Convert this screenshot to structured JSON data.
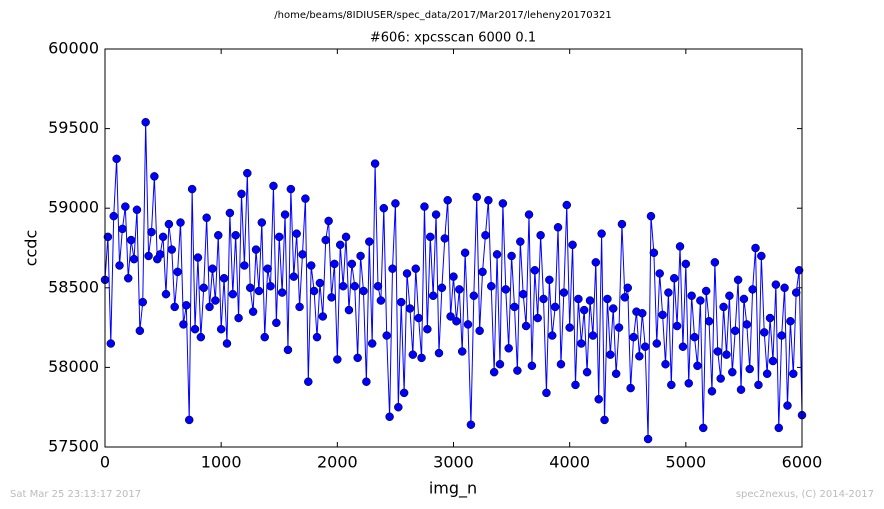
{
  "chart_data": {
    "type": "line",
    "suptitle": "/home/beams/8IDIUSER/spec_data/2017/Mar2017/leheny20170321",
    "title": "#606: xpcsscan 6000 0.1",
    "x_label": "img_n",
    "y_label": "ccdc",
    "footer_left": "Sat Mar 25 23:13:17 2017",
    "footer_right": "spec2nexus, (C) 2014-2017",
    "xlim": [
      0,
      6000
    ],
    "xticks": [
      0,
      1000,
      2000,
      3000,
      4000,
      5000,
      6000
    ],
    "ylim": [
      57500,
      60000
    ],
    "yticks": [
      57500,
      58000,
      58500,
      59000,
      59500,
      60000
    ],
    "grid": false,
    "marker": "circle",
    "x": [
      0,
      25,
      50,
      75,
      100,
      125,
      150,
      175,
      200,
      225,
      250,
      275,
      300,
      325,
      350,
      375,
      400,
      425,
      450,
      475,
      500,
      525,
      550,
      575,
      600,
      625,
      650,
      675,
      700,
      725,
      750,
      775,
      800,
      825,
      850,
      875,
      900,
      925,
      950,
      975,
      1000,
      1025,
      1050,
      1075,
      1100,
      1125,
      1150,
      1175,
      1200,
      1225,
      1250,
      1275,
      1300,
      1325,
      1350,
      1375,
      1400,
      1425,
      1450,
      1475,
      1500,
      1525,
      1550,
      1575,
      1600,
      1625,
      1650,
      1675,
      1700,
      1725,
      1750,
      1775,
      1800,
      1825,
      1850,
      1875,
      1900,
      1925,
      1950,
      1975,
      2000,
      2025,
      2050,
      2075,
      2100,
      2125,
      2150,
      2175,
      2200,
      2225,
      2250,
      2275,
      2300,
      2325,
      2350,
      2375,
      2400,
      2425,
      2450,
      2475,
      2500,
      2525,
      2550,
      2575,
      2600,
      2625,
      2650,
      2675,
      2700,
      2725,
      2750,
      2775,
      2800,
      2825,
      2850,
      2875,
      2900,
      2925,
      2950,
      2975,
      3000,
      3025,
      3050,
      3075,
      3100,
      3125,
      3150,
      3175,
      3200,
      3225,
      3250,
      3275,
      3300,
      3325,
      3350,
      3375,
      3400,
      3425,
      3450,
      3475,
      3500,
      3525,
      3550,
      3575,
      3600,
      3625,
      3650,
      3675,
      3700,
      3725,
      3750,
      3775,
      3800,
      3825,
      3850,
      3875,
      3900,
      3925,
      3950,
      3975,
      4000,
      4025,
      4050,
      4075,
      4100,
      4125,
      4150,
      4175,
      4200,
      4225,
      4250,
      4275,
      4300,
      4325,
      4350,
      4375,
      4400,
      4425,
      4450,
      4475,
      4500,
      4525,
      4550,
      4575,
      4600,
      4625,
      4650,
      4675,
      4700,
      4725,
      4750,
      4775,
      4800,
      4825,
      4850,
      4875,
      4900,
      4925,
      4950,
      4975,
      5000,
      5025,
      5050,
      5075,
      5100,
      5125,
      5150,
      5175,
      5200,
      5225,
      5250,
      5275,
      5300,
      5325,
      5350,
      5375,
      5400,
      5425,
      5450,
      5475,
      5500,
      5525,
      5550,
      5575,
      5600,
      5625,
      5650,
      5675,
      5700,
      5725,
      5750,
      5775,
      5800,
      5825,
      5850,
      5875,
      5900,
      5925,
      5950,
      5975,
      6000
    ],
    "series": [
      {
        "name": "ccdc",
        "color": "#0000ff",
        "values": [
          58550,
          58820,
          58150,
          58950,
          59310,
          58640,
          58870,
          59010,
          58560,
          58800,
          58680,
          58990,
          58230,
          58410,
          59540,
          58700,
          58850,
          59200,
          58680,
          58710,
          58820,
          58460,
          58900,
          58740,
          58380,
          58600,
          58910,
          58270,
          58390,
          57670,
          59120,
          58240,
          58690,
          58190,
          58500,
          58940,
          58380,
          58620,
          58420,
          58830,
          58240,
          58560,
          58150,
          58970,
          58460,
          58830,
          58310,
          59090,
          58640,
          59220,
          58500,
          58350,
          58740,
          58480,
          58910,
          58190,
          58620,
          58510,
          59140,
          58280,
          58820,
          58470,
          58960,
          58110,
          59120,
          58570,
          58840,
          58380,
          58710,
          59060,
          57910,
          58640,
          58480,
          58190,
          58530,
          58320,
          58800,
          58920,
          58440,
          58650,
          58050,
          58770,
          58510,
          58820,
          58360,
          58650,
          58510,
          58060,
          58700,
          58480,
          57910,
          58790,
          58150,
          59280,
          58510,
          58420,
          59000,
          58200,
          57690,
          58620,
          59030,
          57750,
          58410,
          57840,
          58590,
          58370,
          58080,
          58620,
          58310,
          58060,
          59010,
          58240,
          58820,
          58450,
          58960,
          58090,
          58500,
          58810,
          59050,
          58320,
          58570,
          58290,
          58490,
          58100,
          58720,
          58270,
          57640,
          58450,
          59070,
          58230,
          58600,
          58830,
          59050,
          58510,
          57970,
          58710,
          58020,
          59030,
          58490,
          58120,
          58700,
          58380,
          57980,
          58790,
          58460,
          58260,
          58960,
          58010,
          58610,
          58310,
          58830,
          58430,
          57840,
          58550,
          58200,
          58380,
          58880,
          58020,
          58470,
          59020,
          58250,
          58770,
          57890,
          58430,
          58150,
          58360,
          57970,
          58420,
          58200,
          58660,
          57800,
          58840,
          57670,
          58430,
          58080,
          58370,
          57960,
          58250,
          58900,
          58440,
          58500,
          57870,
          58190,
          58350,
          58070,
          58340,
          58130,
          57550,
          58950,
          58720,
          58150,
          58590,
          58330,
          58020,
          58470,
          57890,
          58560,
          58260,
          58760,
          58130,
          58650,
          57900,
          58450,
          58190,
          58010,
          58420,
          57620,
          58480,
          58290,
          57850,
          58660,
          58100,
          57930,
          58380,
          58080,
          58450,
          57970,
          58230,
          58550,
          57860,
          58430,
          58270,
          57990,
          58490,
          58750,
          57890,
          58700,
          58220,
          57960,
          58310,
          58040,
          58520,
          57620,
          58200,
          58500,
          57760,
          58290,
          57960,
          58470,
          58610,
          57700
        ]
      }
    ]
  }
}
